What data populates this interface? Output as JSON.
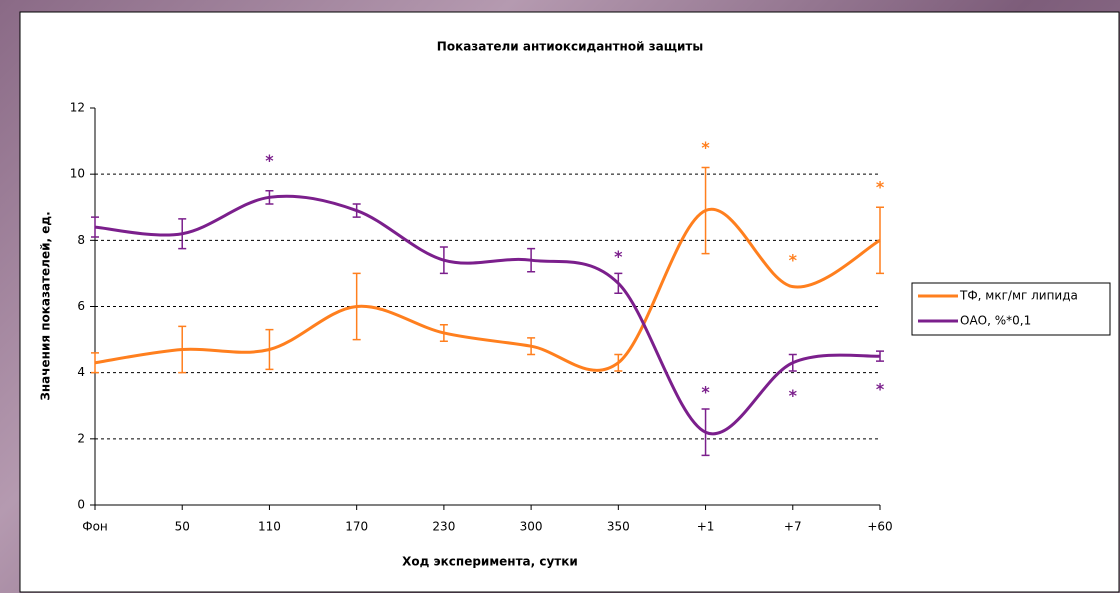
{
  "chart_data": {
    "type": "line",
    "title": "Показатели антиоксидантной защиты",
    "x_label": "Ход эксперимента, сутки",
    "y_label": "Значения показателей, ед.",
    "categories": [
      "Фон",
      "50",
      "110",
      "170",
      "230",
      "300",
      "350",
      "+1",
      "+7",
      "+60"
    ],
    "series": [
      {
        "name": "ТФ, мкг/мг липида",
        "color": "#ff7f1e",
        "values": [
          4.3,
          4.7,
          4.7,
          6.0,
          5.2,
          4.8,
          4.3,
          8.9,
          6.6,
          8.0
        ],
        "errors": [
          0.3,
          0.7,
          0.6,
          1.0,
          0.25,
          0.25,
          0.25,
          1.3,
          0,
          1.0
        ]
      },
      {
        "name": "ОАО, %*0,1",
        "color": "#7b1f8c",
        "values": [
          8.4,
          8.2,
          9.3,
          8.9,
          7.4,
          7.4,
          6.7,
          2.2,
          4.3,
          4.5
        ],
        "errors": [
          0.3,
          0.45,
          0.2,
          0.2,
          0.4,
          0.35,
          0.3,
          0.7,
          0.25,
          0.15
        ]
      }
    ],
    "annotations": [
      {
        "text": "*",
        "category": "110",
        "y": 10.5,
        "series": "ОАО, %*0,1"
      },
      {
        "text": "*",
        "category": "350",
        "y": 7.6,
        "series": "ОАО, %*0,1"
      },
      {
        "text": "*",
        "category": "+1",
        "y": 3.5,
        "series": "ОАО, %*0,1"
      },
      {
        "text": "*",
        "category": "+7",
        "y": 3.4,
        "series": "ОАО, %*0,1"
      },
      {
        "text": "*",
        "category": "+60",
        "y": 3.6,
        "series": "ОАО, %*0,1"
      },
      {
        "text": "*",
        "category": "+1",
        "y": 10.9,
        "series": "ТФ, мкг/мг липида"
      },
      {
        "text": "*",
        "category": "+7",
        "y": 7.5,
        "series": "ТФ, мкг/мг липида"
      },
      {
        "text": "*",
        "category": "+60",
        "y": 9.7,
        "series": "ТФ, мкг/мг липида"
      }
    ],
    "ylim": [
      0,
      12
    ],
    "yticks": [
      0,
      2,
      4,
      6,
      8,
      10,
      12
    ],
    "grid": true,
    "smooth": true,
    "legend": "right"
  }
}
